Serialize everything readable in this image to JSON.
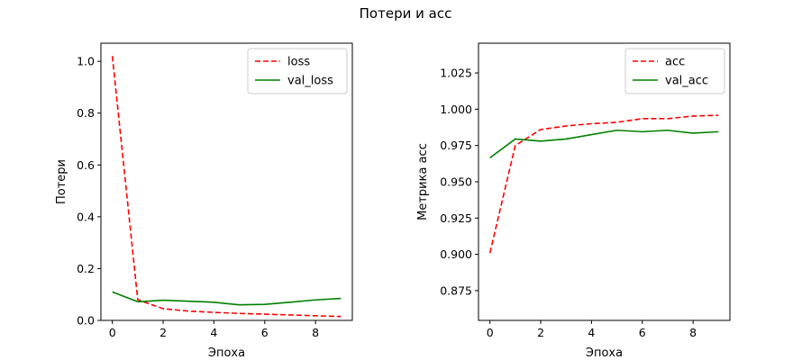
{
  "figure": {
    "title": "Потери и acc"
  },
  "chart_data": [
    {
      "type": "line",
      "title": "",
      "xlabel": "Эпоха",
      "ylabel": "Потери",
      "xlim": [
        -0.45,
        9.45
      ],
      "ylim": [
        0,
        1.07
      ],
      "xticks": [
        0,
        2,
        4,
        6,
        8
      ],
      "yticks": [
        0.0,
        0.2,
        0.4,
        0.6,
        0.8,
        1.0
      ],
      "ytick_decimals": 1,
      "grid": false,
      "legend_position": "top-right",
      "x": [
        0,
        1,
        2,
        3,
        4,
        5,
        6,
        7,
        8,
        9
      ],
      "series": [
        {
          "name": "loss",
          "color": "#ff0000",
          "style": "dashed",
          "values": [
            1.02,
            0.08,
            0.045,
            0.036,
            0.031,
            0.027,
            0.024,
            0.021,
            0.018,
            0.015
          ]
        },
        {
          "name": "val_loss",
          "color": "#008000",
          "style": "solid",
          "values": [
            0.11,
            0.072,
            0.078,
            0.074,
            0.07,
            0.06,
            0.062,
            0.07,
            0.079,
            0.085
          ]
        }
      ]
    },
    {
      "type": "line",
      "title": "",
      "xlabel": "Эпоха",
      "ylabel": "Метрика acc",
      "xlim": [
        -0.45,
        9.45
      ],
      "ylim": [
        0.8545,
        1.0455
      ],
      "xticks": [
        0,
        2,
        4,
        6,
        8
      ],
      "yticks": [
        0.875,
        0.9,
        0.925,
        0.95,
        0.975,
        1.0,
        1.025
      ],
      "ytick_decimals": 3,
      "grid": false,
      "legend_position": "top-right",
      "x": [
        0,
        1,
        2,
        3,
        4,
        5,
        6,
        7,
        8,
        9
      ],
      "series": [
        {
          "name": "acc",
          "color": "#ff0000",
          "style": "dashed",
          "values": [
            0.901,
            0.975,
            0.986,
            0.9885,
            0.99,
            0.991,
            0.9935,
            0.9935,
            0.9953,
            0.9958
          ]
        },
        {
          "name": "val_acc",
          "color": "#008000",
          "style": "solid",
          "values": [
            0.9665,
            0.9795,
            0.978,
            0.9795,
            0.9825,
            0.9855,
            0.9845,
            0.9855,
            0.9835,
            0.9845
          ]
        }
      ]
    }
  ]
}
